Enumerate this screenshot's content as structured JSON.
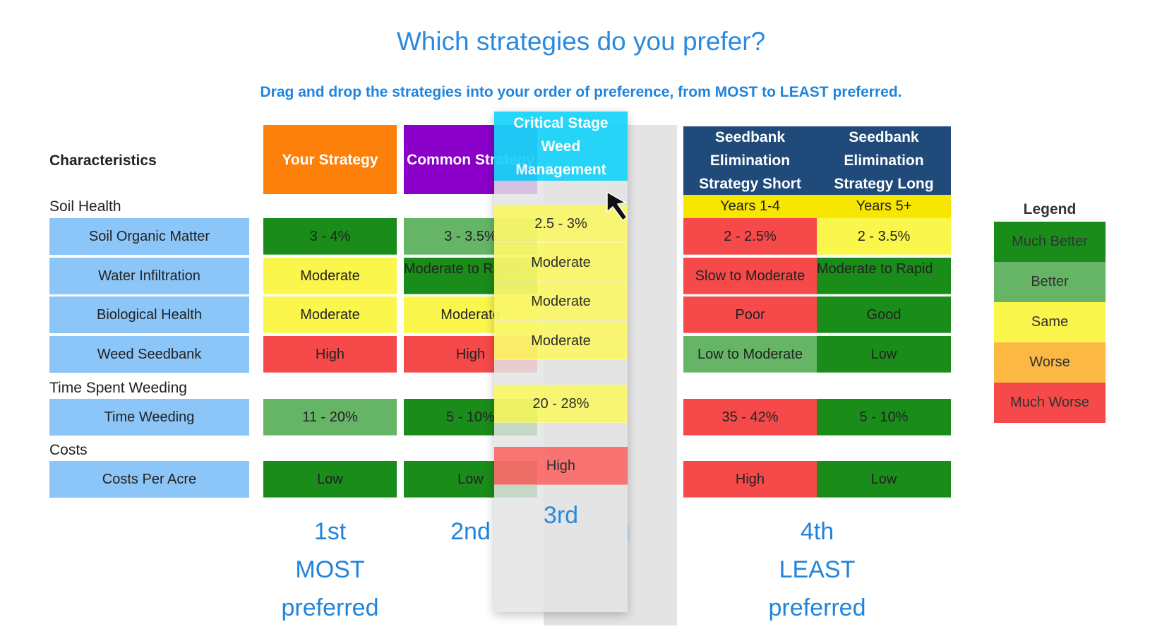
{
  "title": "Which strategies do you prefer?",
  "subtitle": "Drag and drop the strategies into your order of preference, from MOST to LEAST preferred.",
  "characteristics_label": "Characteristics",
  "sections": [
    {
      "label": "Soil Health"
    },
    {
      "label": "Time Spent Weeding"
    },
    {
      "label": "Costs"
    }
  ],
  "rows": [
    "Soil Organic Matter",
    "Water Infiltration",
    "Biological Health",
    "Weed Seedbank",
    "Time Weeding",
    "Costs Per Acre"
  ],
  "colors": {
    "much-better": "#1a8c1a",
    "better": "#66b466",
    "same": "#fbf64c",
    "worse": "#fbb944",
    "much-worse": "#f64a4a",
    "label_blue": "#8cc6f8",
    "text_blue": "#1f84dc"
  },
  "strategies": [
    {
      "header": "Your Strategy",
      "header_color": "#fd800a",
      "cells": [
        {
          "v": "3 - 4%",
          "r": "much-better"
        },
        {
          "v": "Moderate",
          "r": "same"
        },
        {
          "v": "Moderate",
          "r": "same"
        },
        {
          "v": "High",
          "r": "much-worse"
        },
        {
          "v": "11 - 20%",
          "r": "better"
        },
        {
          "v": "Low",
          "r": "much-better"
        }
      ],
      "rank": [
        "1st",
        "MOST",
        "preferred"
      ]
    },
    {
      "header": "Common Strategy",
      "header_color": "#8a00c8",
      "cells": [
        {
          "v": "3 - 3.5%",
          "r": "better"
        },
        {
          "v": "Moderate to Rapid",
          "r": "much-better"
        },
        {
          "v": "Moderate",
          "r": "same"
        },
        {
          "v": "High",
          "r": "much-worse"
        },
        {
          "v": "5 - 10%",
          "r": "much-better"
        },
        {
          "v": "Low",
          "r": "much-better"
        }
      ],
      "rank": [
        "2nd"
      ]
    },
    {
      "header": "Critical Stage Weed Management",
      "header_color": "#1ad4f8",
      "cells": [
        {
          "v": "2.5 - 3%",
          "r": "same"
        },
        {
          "v": "Moderate",
          "r": "same"
        },
        {
          "v": "Moderate",
          "r": "same"
        },
        {
          "v": "Moderate",
          "r": "same"
        },
        {
          "v": "20 - 28%",
          "r": "same"
        },
        {
          "v": "High",
          "r": "much-worse"
        }
      ],
      "rank": [
        "3rd"
      ],
      "drop_target_rank": "3rd",
      "dragging": true
    },
    {
      "header": "Seedbank Elimination Strategy Short",
      "header_color": "#1f4a7a",
      "years": "Years 1-4",
      "cells": [
        {
          "v": "2 - 2.5%",
          "r": "much-worse"
        },
        {
          "v": "Slow to Moderate",
          "r": "much-worse"
        },
        {
          "v": "Poor",
          "r": "much-worse"
        },
        {
          "v": "Low to Moderate",
          "r": "better"
        },
        {
          "v": "35 - 42%",
          "r": "much-worse"
        },
        {
          "v": "High",
          "r": "much-worse"
        }
      ]
    },
    {
      "header": "Seedbank Elimination Strategy Long",
      "header_color": "#1f4a7a",
      "years": "Years 5+",
      "cells": [
        {
          "v": "2 - 3.5%",
          "r": "same"
        },
        {
          "v": "Moderate to Rapid",
          "r": "much-better"
        },
        {
          "v": "Good",
          "r": "much-better"
        },
        {
          "v": "Low",
          "r": "much-better"
        },
        {
          "v": "5 - 10%",
          "r": "much-better"
        },
        {
          "v": "Low",
          "r": "much-better"
        }
      ]
    }
  ],
  "seedbank_rank": [
    "4th",
    "LEAST",
    "preferred"
  ],
  "legend": {
    "title": "Legend",
    "items": [
      {
        "label": "Much Better",
        "r": "much-better"
      },
      {
        "label": "Better",
        "r": "better"
      },
      {
        "label": "Same",
        "r": "same"
      },
      {
        "label": "Worse",
        "r": "worse"
      },
      {
        "label": "Much Worse",
        "r": "much-worse"
      }
    ]
  },
  "cursor_icon": "arrow-pointer-icon"
}
